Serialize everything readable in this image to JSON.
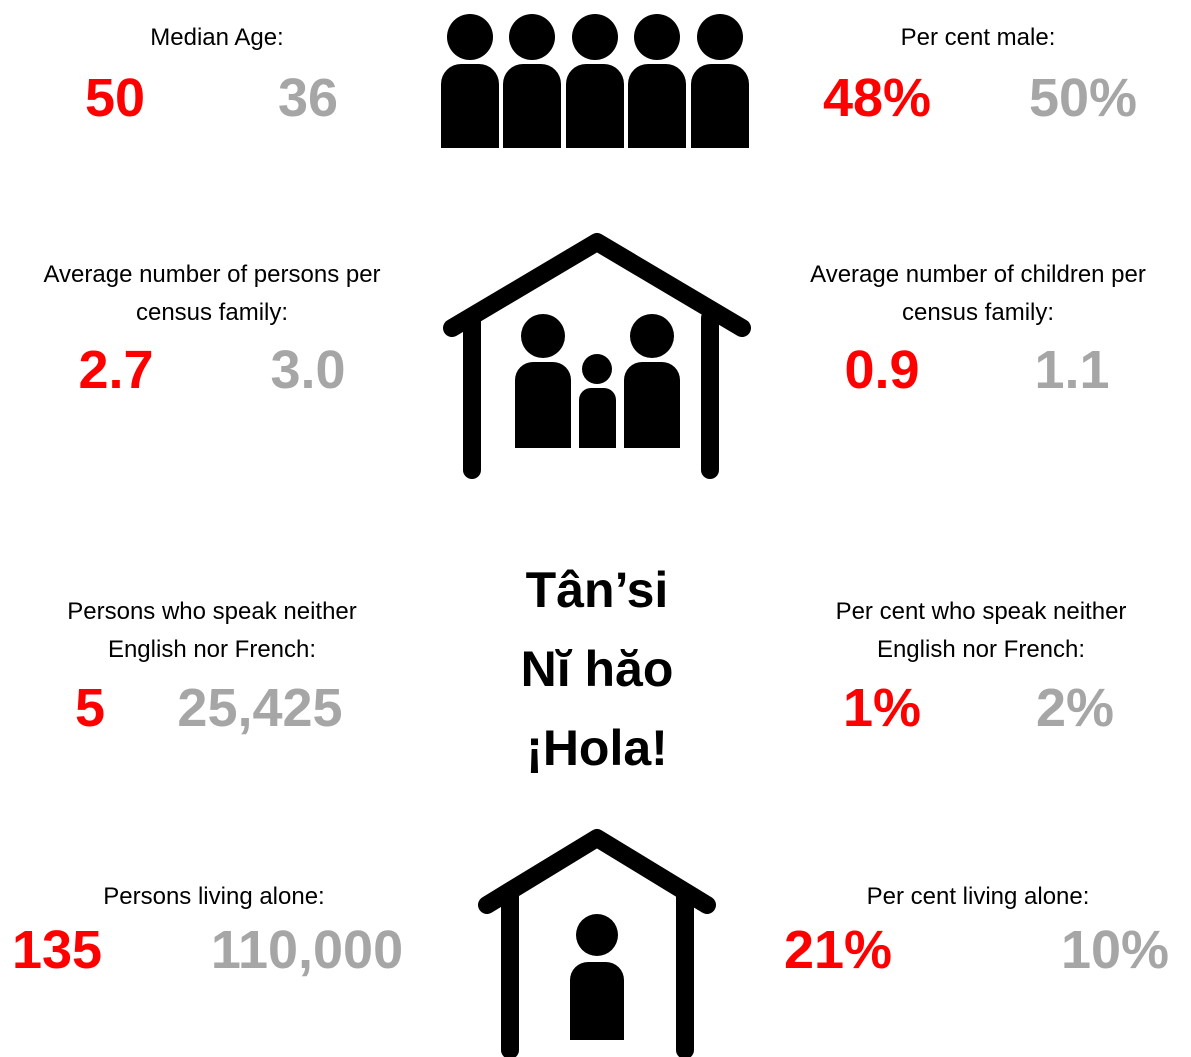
{
  "stats": [
    {
      "label_lines": [
        "Median Age:"
      ],
      "local": "50",
      "comparison": "36"
    },
    {
      "label_lines": [
        "Per cent male:"
      ],
      "local": "48%",
      "comparison": "50%"
    },
    {
      "label_lines": [
        "Average number of persons per",
        "census family:"
      ],
      "local": "2.7",
      "comparison": "3.0"
    },
    {
      "label_lines": [
        "Average number of children per",
        "census family:"
      ],
      "local": "0.9",
      "comparison": "1.1"
    },
    {
      "label_lines": [
        "Persons who speak neither",
        "English nor French:"
      ],
      "local": "5",
      "comparison": "25,425"
    },
    {
      "label_lines": [
        "Per cent who speak neither",
        "English nor French:"
      ],
      "local": "1%",
      "comparison": "2%"
    },
    {
      "label_lines": [
        "Persons living alone:"
      ],
      "local": "135",
      "comparison": "110,000"
    },
    {
      "label_lines": [
        "Per cent living alone:"
      ],
      "local": "21%",
      "comparison": "10%"
    }
  ],
  "greetings": [
    "Tân’si",
    "Nĭ hăo",
    "¡Hola!"
  ]
}
